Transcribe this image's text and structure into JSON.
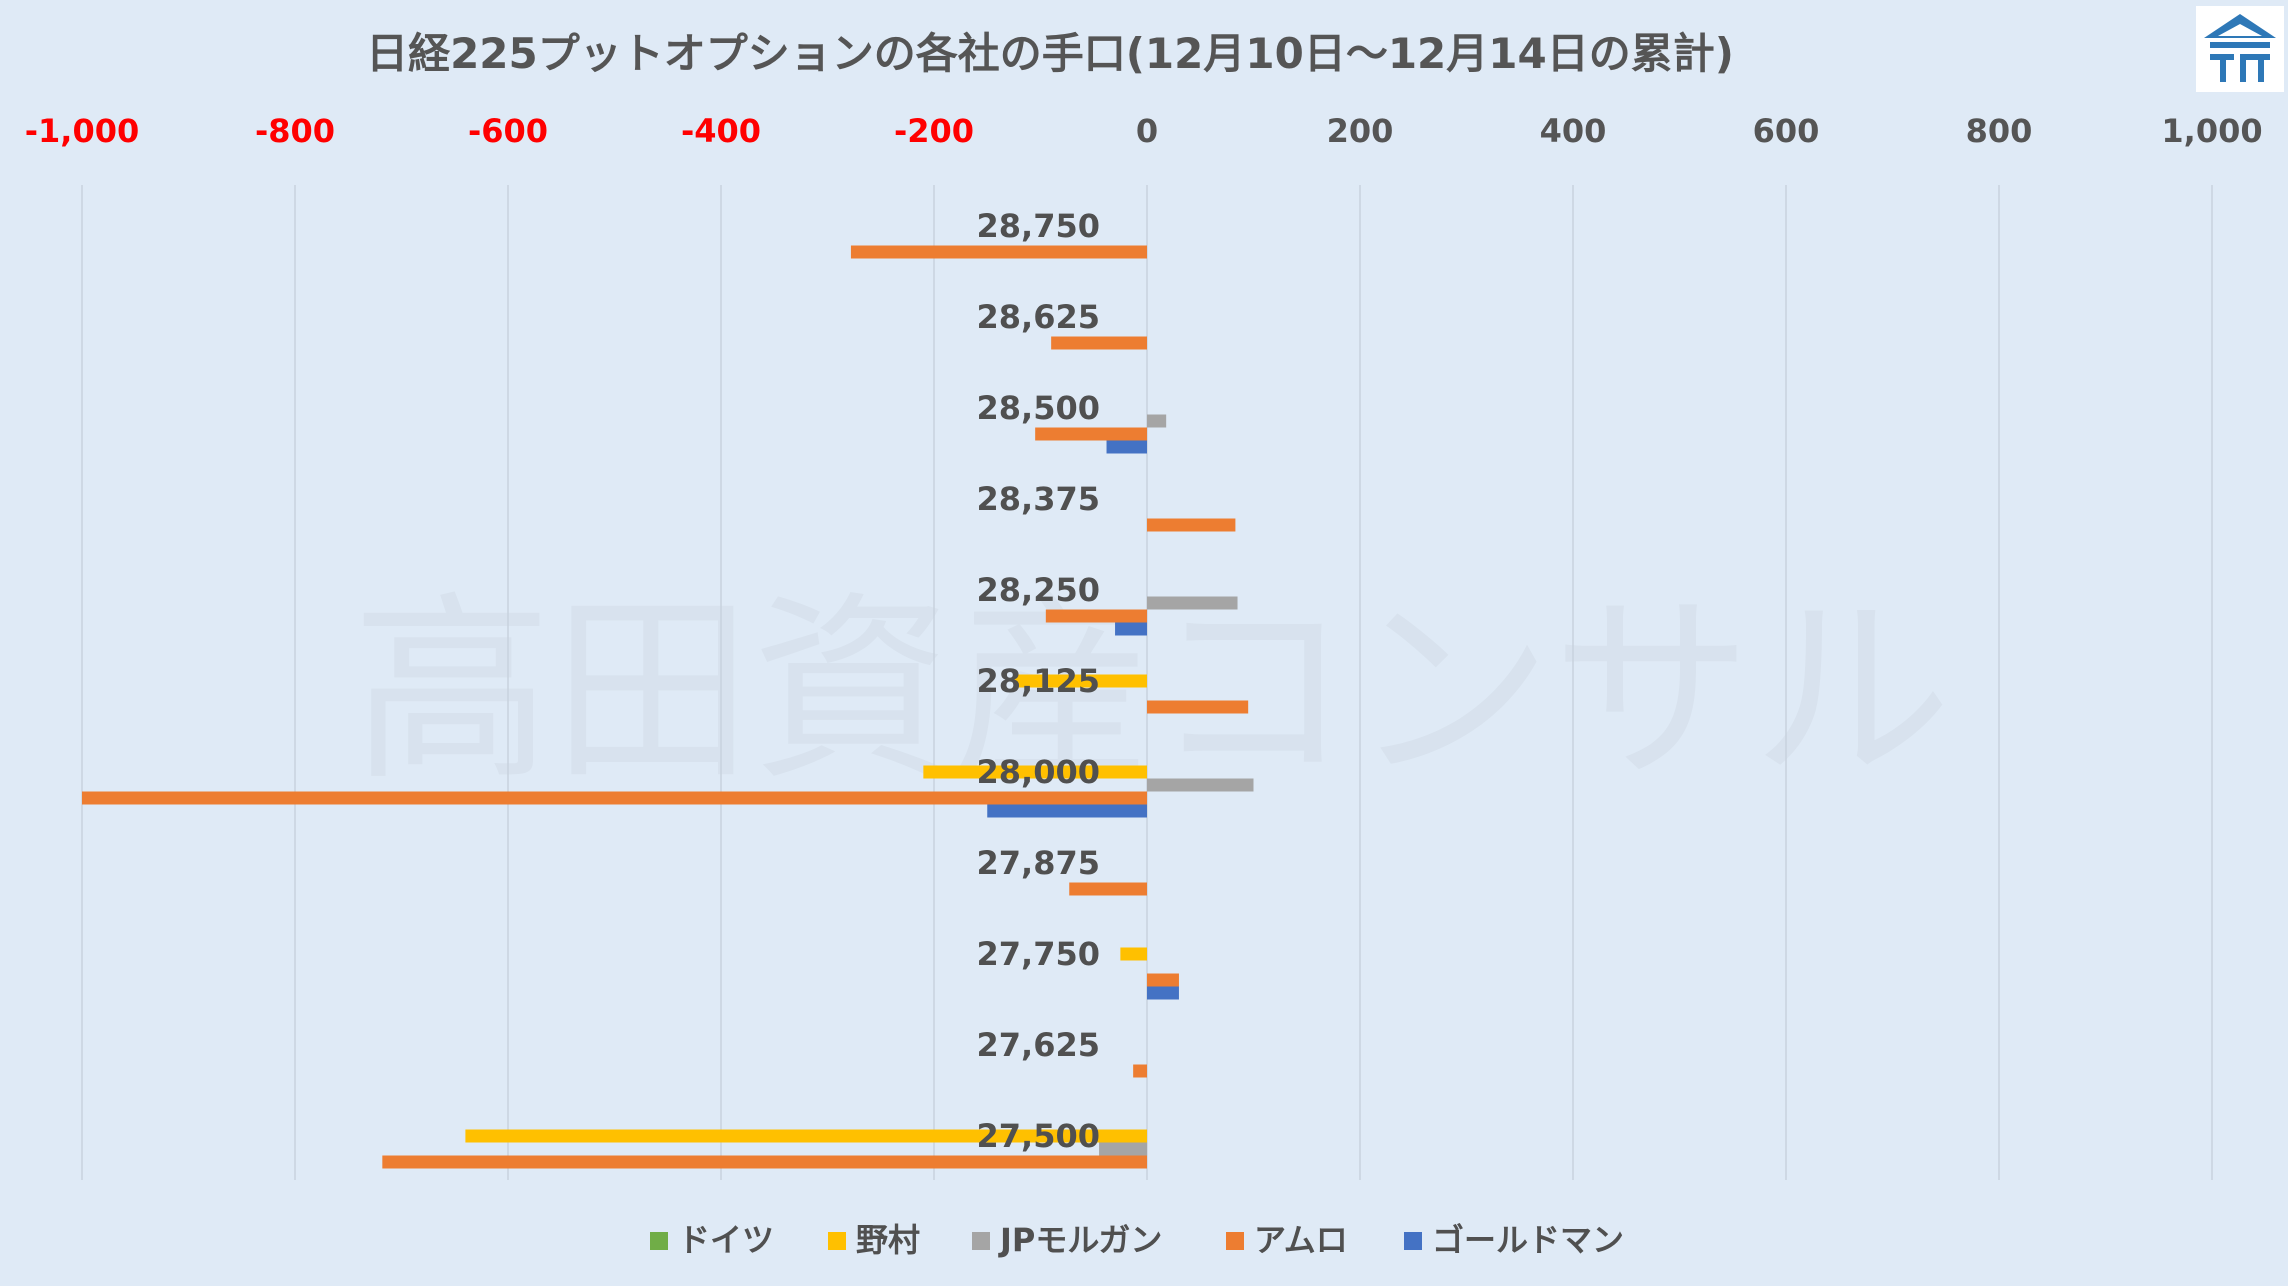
{
  "chart_data": {
    "type": "bar",
    "orientation": "horizontal",
    "title": "日経225プットオプションの各社の手口(12月10日～12月14日の累計)",
    "watermark": "高田資産コンサル",
    "xlim": [
      -1000,
      1000
    ],
    "x_ticks": [
      "-1,000",
      "-800",
      "-600",
      "-400",
      "-200",
      "0",
      "200",
      "400",
      "600",
      "800",
      "1,000"
    ],
    "x_tick_values": [
      -1000,
      -800,
      -600,
      -400,
      -200,
      0,
      200,
      400,
      600,
      800,
      1000
    ],
    "negative_tick_color": "#ff0000",
    "categories": [
      "28,750",
      "28,625",
      "28,500",
      "28,375",
      "28,250",
      "28,125",
      "28,000",
      "27,875",
      "27,750",
      "27,625",
      "27,500"
    ],
    "series": [
      {
        "name": "ドイツ",
        "color": "#70ad47",
        "values": [
          0,
          0,
          0,
          0,
          0,
          0,
          0,
          0,
          0,
          0,
          0
        ]
      },
      {
        "name": "野村",
        "color": "#ffc000",
        "values": [
          0,
          0,
          0,
          0,
          0,
          -125,
          -210,
          0,
          -25,
          0,
          -640
        ]
      },
      {
        "name": "JPモルガン",
        "color": "#a5a5a5",
        "values": [
          0,
          0,
          18,
          0,
          85,
          0,
          100,
          0,
          0,
          0,
          -45
        ]
      },
      {
        "name": "アムロ",
        "color": "#ed7d31",
        "values": [
          -278,
          -90,
          -105,
          83,
          -95,
          95,
          -1000,
          -73,
          30,
          -13,
          -718
        ]
      },
      {
        "name": "ゴールドマン",
        "color": "#4472c4",
        "values": [
          0,
          0,
          -38,
          0,
          -30,
          0,
          -150,
          0,
          30,
          0,
          0
        ]
      }
    ],
    "grid": "vertical",
    "legend_position": "bottom"
  }
}
